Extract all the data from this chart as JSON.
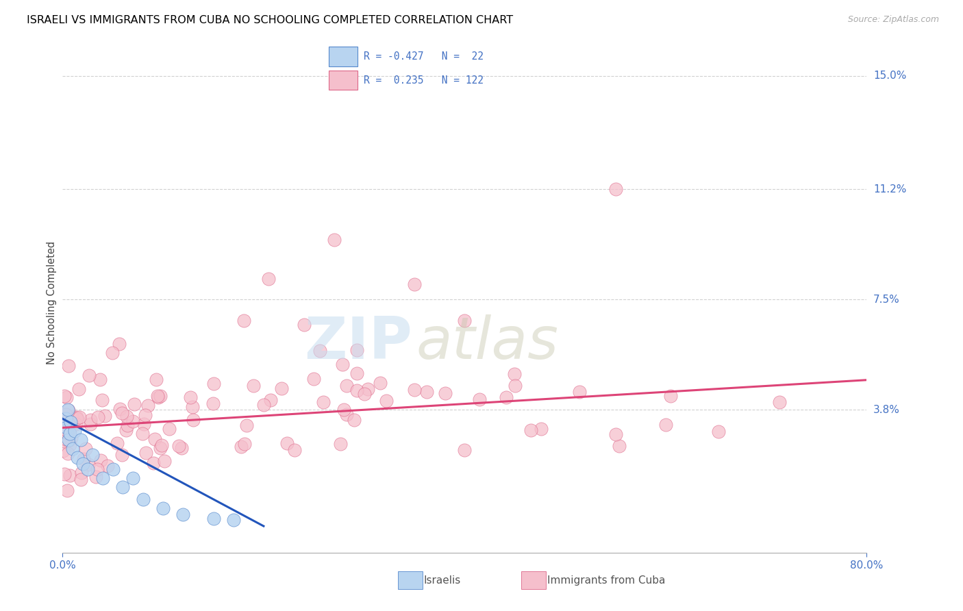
{
  "title": "ISRAELI VS IMMIGRANTS FROM CUBA NO SCHOOLING COMPLETED CORRELATION CHART",
  "source": "Source: ZipAtlas.com",
  "ylabel_label": "No Schooling Completed",
  "ylabel_ticks": [
    "3.8%",
    "7.5%",
    "11.2%",
    "15.0%"
  ],
  "ylabel_values": [
    3.8,
    7.5,
    11.2,
    15.0
  ],
  "grid_yticks": [
    3.8,
    7.5,
    11.2,
    15.0
  ],
  "xmin": 0.0,
  "xmax": 80.0,
  "ymin": -1.0,
  "ymax": 15.8,
  "israelis": {
    "color": "#b8d4f0",
    "edge_color": "#5588cc",
    "line_color": "#2255bb",
    "R": -0.427,
    "N": 22
  },
  "cubans": {
    "color": "#f5bfcc",
    "edge_color": "#dd6688",
    "line_color": "#dd4477",
    "R": 0.235,
    "N": 122
  },
  "watermark_zip": "ZIP",
  "watermark_atlas": "atlas",
  "background_color": "#ffffff",
  "grid_color": "#cccccc",
  "tick_color": "#4472c4",
  "title_color": "#000000",
  "title_fontsize": 11.5,
  "legend_r1": "R = -0.427   N =  22",
  "legend_r2": "R =  0.235   N = 122",
  "bottom_label1": "Israelis",
  "bottom_label2": "Immigrants from Cuba"
}
